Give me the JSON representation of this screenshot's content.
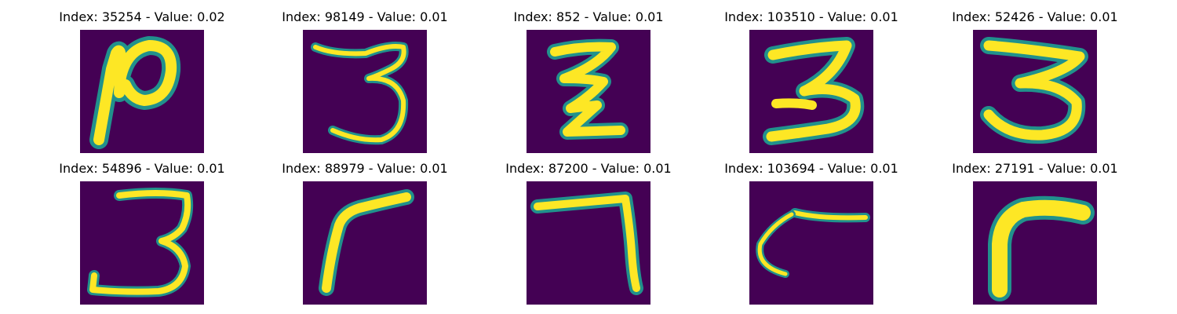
{
  "colors": {
    "background": "#440154",
    "edge": "#21918c",
    "mid": "#5ec962",
    "stroke": "#fde725"
  },
  "panels": [
    {
      "title": "Index: 35254 - Value: 0.02",
      "index": 35254,
      "value": 0.02,
      "glyph": "digit-icon"
    },
    {
      "title": "Index: 98149 - Value: 0.01",
      "index": 98149,
      "value": 0.01,
      "glyph": "digit-icon"
    },
    {
      "title": "Index: 852 - Value: 0.01",
      "index": 852,
      "value": 0.01,
      "glyph": "digit-icon"
    },
    {
      "title": "Index: 103510 - Value: 0.01",
      "index": 103510,
      "value": 0.01,
      "glyph": "digit-icon"
    },
    {
      "title": "Index: 52426 - Value: 0.01",
      "index": 52426,
      "value": 0.01,
      "glyph": "digit-icon"
    },
    {
      "title": "Index: 54896 - Value: 0.01",
      "index": 54896,
      "value": 0.01,
      "glyph": "digit-icon"
    },
    {
      "title": "Index: 88979 - Value: 0.01",
      "index": 88979,
      "value": 0.01,
      "glyph": "digit-icon"
    },
    {
      "title": "Index: 87200 - Value: 0.01",
      "index": 87200,
      "value": 0.01,
      "glyph": "digit-icon"
    },
    {
      "title": "Index: 103694 - Value: 0.01",
      "index": 103694,
      "value": 0.01,
      "glyph": "digit-icon"
    },
    {
      "title": "Index: 27191 - Value: 0.01",
      "index": 27191,
      "value": 0.01,
      "glyph": "digit-icon"
    }
  ]
}
